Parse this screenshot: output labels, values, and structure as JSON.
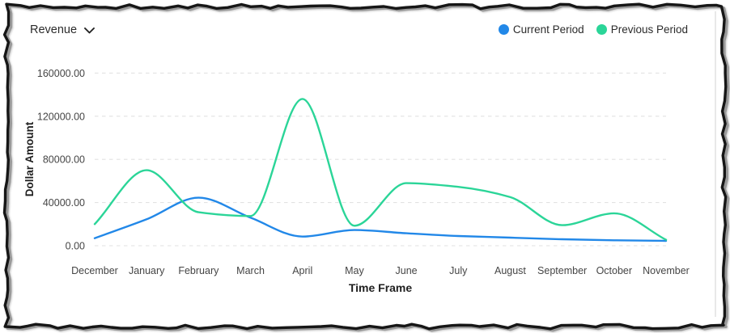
{
  "header": {
    "metric_label": "Revenue"
  },
  "chart_data": {
    "type": "line",
    "title": "",
    "xlabel": "Time Frame",
    "ylabel": "Dollar Amount",
    "categories": [
      "December",
      "January",
      "February",
      "March",
      "April",
      "May",
      "June",
      "July",
      "August",
      "September",
      "October",
      "November"
    ],
    "series": [
      {
        "name": "Current Period",
        "color": "#2288e8",
        "values": [
          7000,
          24500,
          44500,
          26000,
          8500,
          14500,
          11500,
          9000,
          7500,
          6000,
          5000,
          4500
        ]
      },
      {
        "name": "Previous Period",
        "color": "#2bd598",
        "values": [
          20000,
          70000,
          31000,
          27500,
          136000,
          18500,
          58000,
          54500,
          45000,
          19000,
          30000,
          5500
        ]
      }
    ],
    "ylim": [
      0,
      160000
    ],
    "y_ticks": [
      0,
      40000,
      80000,
      120000,
      160000
    ],
    "y_tick_labels": [
      "0.00",
      "40000.00",
      "80000.00",
      "120000.00",
      "160000.00"
    ],
    "grid": "horizontal-dashed",
    "grid_color": "#e2e2e2",
    "tick_label_color": "#454545",
    "legend_position": "top-right",
    "curve": "smooth-monotone"
  }
}
